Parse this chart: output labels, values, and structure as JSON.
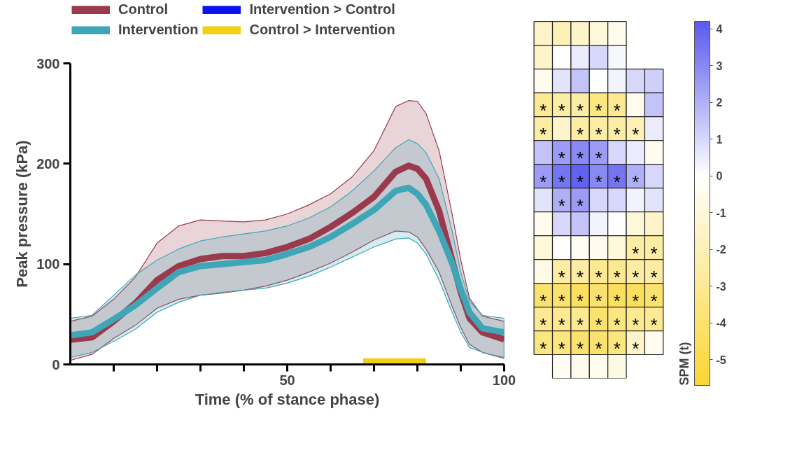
{
  "chart_data": [
    {
      "type": "line",
      "xlabel": "Time (% of stance phase)",
      "ylabel": "Peak pressure (kPa)",
      "x": [
        0,
        5,
        10,
        15,
        20,
        25,
        30,
        35,
        40,
        45,
        50,
        55,
        60,
        65,
        70,
        75,
        78,
        80,
        82,
        85,
        88,
        90,
        92,
        95,
        100
      ],
      "series": [
        {
          "name": "Control",
          "color": "#9b3a4d",
          "values": [
            24.5,
            27,
            43,
            61,
            84,
            98,
            105,
            108,
            108,
            111,
            117,
            125,
            137,
            151,
            167,
            192,
            198,
            195,
            185,
            153,
            104,
            72,
            46,
            32,
            25
          ],
          "upper": [
            43,
            48,
            65,
            87,
            121,
            138,
            144,
            143,
            142,
            144,
            150,
            159,
            170,
            187,
            213,
            257,
            263,
            262,
            250,
            213,
            150,
            104,
            66,
            48,
            43
          ],
          "lower": [
            4,
            10,
            26,
            39,
            56,
            65,
            69,
            71,
            74,
            78,
            84,
            92,
            101,
            112,
            124,
            133,
            132,
            127,
            115,
            92,
            58,
            37,
            20,
            12,
            6
          ]
        },
        {
          "name": "Intervention",
          "color": "#3fa6b8",
          "values": [
            29,
            32,
            45,
            59,
            76,
            92,
            98,
            100,
            102,
            104,
            110,
            117,
            127,
            140,
            154,
            173,
            176,
            170,
            159,
            133,
            101,
            75,
            52,
            36,
            32
          ],
          "upper": [
            46,
            49,
            69,
            89,
            104,
            115,
            123,
            127,
            130,
            133,
            138,
            146,
            157,
            173,
            193,
            216,
            224,
            220,
            211,
            185,
            133,
            92,
            63,
            49,
            46
          ],
          "lower": [
            7,
            12,
            23,
            35,
            52,
            62,
            69,
            72,
            74,
            76,
            81,
            88,
            97,
            107,
            117,
            125,
            126,
            121,
            110,
            84,
            52,
            32,
            17,
            12,
            7
          ]
        },
        {
          "name": "Intervention > Control",
          "color": "#0a14f0",
          "values": [
            null,
            null,
            null,
            null,
            null,
            null,
            null,
            null,
            null,
            null,
            null,
            null,
            null,
            null,
            null,
            null,
            null,
            null,
            null,
            null,
            null,
            null,
            null,
            null,
            null
          ]
        },
        {
          "name": "Control > Intervention",
          "color": "#f0d010",
          "x": [
            67.5,
            82
          ],
          "values": [
            2,
            2
          ]
        }
      ],
      "xlim": [
        0,
        100
      ],
      "ylim": [
        0,
        300
      ],
      "xticks": [
        {
          "value": 10,
          "label": null
        },
        {
          "value": 20,
          "label": null
        },
        {
          "value": 30,
          "label": null
        },
        {
          "value": 40,
          "label": null
        },
        50,
        {
          "value": 60,
          "label": null
        },
        {
          "value": 70,
          "label": null
        },
        {
          "value": 80,
          "label": null
        },
        {
          "value": 90,
          "label": null
        },
        100
      ],
      "yticks": [
        0,
        100,
        200,
        300
      ],
      "grid": false,
      "legend": "top",
      "line_style": "solid",
      "marker": "none"
    },
    {
      "type": "heatmap",
      "clabel": "SPM (t)",
      "categories": [
        null,
        null,
        null,
        null,
        null,
        null,
        null
      ],
      "y_categories": [
        null,
        null,
        null,
        null,
        null,
        null,
        null,
        null,
        null,
        null,
        null,
        null,
        null,
        null,
        null
      ],
      "cells": [
        [
          -1.5,
          -2,
          -1.5,
          -1,
          -0.5,
          null,
          null
        ],
        [
          -1.5,
          0,
          0.5,
          1,
          0.2,
          null,
          null
        ],
        [
          -0.5,
          0.7,
          1.5,
          0,
          0.3,
          1,
          1.2
        ],
        [
          -3,
          -2.5,
          -2.5,
          -3.5,
          -3,
          -0.5,
          1.5
        ],
        [
          -2.5,
          -1.5,
          -2.5,
          -2.5,
          -2.5,
          -2,
          0.5
        ],
        [
          1.5,
          2.5,
          3,
          2.5,
          1,
          0.5,
          -0.5
        ],
        [
          2.5,
          3.5,
          4,
          3,
          3.5,
          2,
          1
        ],
        [
          0.7,
          2,
          2.5,
          1,
          1,
          0.3,
          0.7
        ],
        [
          -0.5,
          1,
          1.5,
          0.3,
          0,
          -1,
          -1.5
        ],
        [
          -1,
          0,
          -0.3,
          -0.5,
          -1,
          -2.5,
          -2.5
        ],
        [
          -0.7,
          -2.5,
          -2.5,
          -3,
          -3,
          -2.5,
          -2.5
        ],
        [
          -4,
          -4,
          -4.5,
          -4,
          -4.5,
          -4.5,
          -4
        ],
        [
          -3,
          -3,
          -3,
          -4,
          -3.5,
          -3,
          -3
        ],
        [
          -3.5,
          -3.5,
          -4,
          -4,
          -3.5,
          -1.5,
          -0.5
        ],
        [
          null,
          -0.3,
          -0.5,
          -0.5,
          -0.8,
          null,
          null
        ]
      ],
      "cell_labels": [
        [
          null,
          null,
          null,
          null,
          null,
          null,
          null
        ],
        [
          null,
          null,
          null,
          null,
          null,
          null,
          null
        ],
        [
          null,
          null,
          null,
          null,
          null,
          null,
          null
        ],
        [
          "*",
          "*",
          "*",
          "*",
          "*",
          null,
          null
        ],
        [
          "*",
          null,
          "*",
          "*",
          "*",
          "*",
          null
        ],
        [
          null,
          "*",
          "*",
          "*",
          null,
          null,
          null
        ],
        [
          "*",
          "*",
          "*",
          "*",
          "*",
          "*",
          null
        ],
        [
          null,
          "*",
          "*",
          null,
          null,
          null,
          null
        ],
        [
          null,
          null,
          null,
          null,
          null,
          null,
          null
        ],
        [
          null,
          null,
          null,
          null,
          null,
          "*",
          "*"
        ],
        [
          null,
          "*",
          "*",
          "*",
          "*",
          "*",
          "*"
        ],
        [
          "*",
          "*",
          "*",
          "*",
          "*",
          "*",
          "*"
        ],
        [
          "*",
          "*",
          "*",
          "*",
          "*",
          "*",
          "*"
        ],
        [
          "*",
          "*",
          "*",
          "*",
          "*",
          "*",
          null
        ],
        [
          null,
          null,
          null,
          null,
          null,
          null,
          null
        ]
      ],
      "clim": [
        -5.7,
        4.2
      ],
      "cticks": [
        -5,
        -4,
        -3,
        -2,
        -1,
        0,
        1,
        2,
        3,
        4
      ],
      "tick_labels": false
    }
  ]
}
